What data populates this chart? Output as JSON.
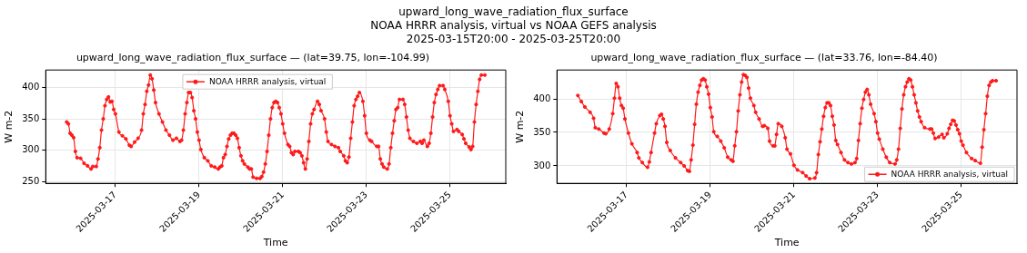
{
  "chart_data": [
    {
      "type": "other",
      "title": "upward_long_wave_radiation_flux_surface",
      "subtitle": "NOAA HRRR analysis, virtual vs NOAA GEFS analysis",
      "annotations": [
        "2025-03-15T20:00 - 2025-03-25T20:00"
      ]
    },
    {
      "type": "line",
      "title": "upward_long_wave_radiation_flux_surface — (lat=39.75, lon=-104.99)",
      "xlabel": "Time",
      "ylabel": "W m-2",
      "xlim": [
        "2025-03-15T08:00",
        "2025-03-26T08:00"
      ],
      "ylim": [
        247,
        428
      ],
      "xticks": [
        "2025-03-17",
        "2025-03-19",
        "2025-03-21",
        "2025-03-23",
        "2025-03-25"
      ],
      "yticks": [
        250,
        300,
        350,
        400
      ],
      "grid": true,
      "legend": "top",
      "marker": "circle",
      "line_style": "solid",
      "series": [
        {
          "name": "NOAA HRRR analysis, virtual",
          "color": "#ff1a1a",
          "x": [
            "2025-03-15T20:00",
            "2025-03-15T21:00",
            "2025-03-15T22:00",
            "2025-03-15T23:00",
            "2025-03-16T00:00",
            "2025-03-16T01:00",
            "2025-03-16T02:00",
            "2025-03-16T04:00",
            "2025-03-16T06:00",
            "2025-03-16T08:00",
            "2025-03-16T10:00",
            "2025-03-16T11:00",
            "2025-03-16T13:00",
            "2025-03-16T14:00",
            "2025-03-16T15:00",
            "2025-03-16T16:00",
            "2025-03-16T17:00",
            "2025-03-16T18:00",
            "2025-03-16T19:00",
            "2025-03-16T20:00",
            "2025-03-16T21:00",
            "2025-03-16T22:00",
            "2025-03-16T23:00",
            "2025-03-17T00:00",
            "2025-03-17T02:00",
            "2025-03-17T04:00",
            "2025-03-17T06:00",
            "2025-03-17T08:00",
            "2025-03-17T09:00",
            "2025-03-17T11:00",
            "2025-03-17T13:00",
            "2025-03-17T15:00",
            "2025-03-17T16:00",
            "2025-03-17T17:00",
            "2025-03-17T18:00",
            "2025-03-17T19:00",
            "2025-03-17T20:00",
            "2025-03-17T21:00",
            "2025-03-17T22:00",
            "2025-03-17T23:00",
            "2025-03-18T01:00",
            "2025-03-18T03:00",
            "2025-03-18T05:00",
            "2025-03-18T07:00",
            "2025-03-18T09:00",
            "2025-03-18T11:00",
            "2025-03-18T13:00",
            "2025-03-18T14:00",
            "2025-03-18T15:00",
            "2025-03-18T16:00",
            "2025-03-18T17:00",
            "2025-03-18T18:00",
            "2025-03-18T19:00",
            "2025-03-18T20:00",
            "2025-03-18T21:00",
            "2025-03-18T22:00",
            "2025-03-18T23:00",
            "2025-03-19T00:00",
            "2025-03-19T01:00",
            "2025-03-19T03:00",
            "2025-03-19T05:00",
            "2025-03-19T07:00",
            "2025-03-19T09:00",
            "2025-03-19T11:00",
            "2025-03-19T12:00",
            "2025-03-19T13:00",
            "2025-03-19T14:00",
            "2025-03-19T15:00",
            "2025-03-19T16:00",
            "2025-03-19T17:00",
            "2025-03-19T18:00",
            "2025-03-19T19:00",
            "2025-03-19T20:00",
            "2025-03-19T21:00",
            "2025-03-19T22:00",
            "2025-03-19T23:00",
            "2025-03-20T00:00",
            "2025-03-20T01:00",
            "2025-03-20T02:00",
            "2025-03-20T04:00",
            "2025-03-20T05:00",
            "2025-03-20T06:00",
            "2025-03-20T07:00",
            "2025-03-20T09:00",
            "2025-03-20T11:00",
            "2025-03-20T12:00",
            "2025-03-20T13:00",
            "2025-03-20T14:00",
            "2025-03-20T15:00",
            "2025-03-20T16:00",
            "2025-03-20T17:00",
            "2025-03-20T18:00",
            "2025-03-20T19:00",
            "2025-03-20T20:00",
            "2025-03-20T21:00",
            "2025-03-20T22:00",
            "2025-03-20T23:00",
            "2025-03-21T00:00",
            "2025-03-21T01:00",
            "2025-03-21T03:00",
            "2025-03-21T04:00",
            "2025-03-21T05:00",
            "2025-03-21T06:00",
            "2025-03-21T07:00",
            "2025-03-21T09:00",
            "2025-03-21T10:00",
            "2025-03-21T11:00",
            "2025-03-21T12:00",
            "2025-03-21T13:00",
            "2025-03-21T14:00",
            "2025-03-21T15:00",
            "2025-03-21T16:00",
            "2025-03-21T17:00",
            "2025-03-21T18:00",
            "2025-03-21T20:00",
            "2025-03-21T21:00",
            "2025-03-21T22:00",
            "2025-03-22T00:00",
            "2025-03-22T01:00",
            "2025-03-22T02:00",
            "2025-03-22T04:00",
            "2025-03-22T06:00",
            "2025-03-22T08:00",
            "2025-03-22T09:00",
            "2025-03-22T11:00",
            "2025-03-22T12:00",
            "2025-03-22T13:00",
            "2025-03-22T14:00",
            "2025-03-22T15:00",
            "2025-03-22T16:00",
            "2025-03-22T17:00",
            "2025-03-22T18:00",
            "2025-03-22T19:00",
            "2025-03-22T20:00",
            "2025-03-22T22:00",
            "2025-03-22T23:00",
            "2025-03-23T00:00",
            "2025-03-23T02:00",
            "2025-03-23T03:00",
            "2025-03-23T06:00",
            "2025-03-23T07:00",
            "2025-03-23T08:00",
            "2025-03-23T09:00",
            "2025-03-23T10:00",
            "2025-03-23T12:00",
            "2025-03-23T13:00",
            "2025-03-23T14:00",
            "2025-03-23T15:00",
            "2025-03-23T16:00",
            "2025-03-23T17:00",
            "2025-03-23T18:00",
            "2025-03-23T19:00",
            "2025-03-23T21:00",
            "2025-03-23T22:00",
            "2025-03-23T23:00",
            "2025-03-24T00:00",
            "2025-03-24T01:00",
            "2025-03-24T03:00",
            "2025-03-24T05:00",
            "2025-03-24T07:00",
            "2025-03-24T08:00",
            "2025-03-24T09:00",
            "2025-03-24T11:00",
            "2025-03-24T12:00",
            "2025-03-24T13:00",
            "2025-03-24T14:00",
            "2025-03-24T15:00",
            "2025-03-24T16:00",
            "2025-03-24T17:00",
            "2025-03-24T18:00",
            "2025-03-24T20:00",
            "2025-03-24T21:00",
            "2025-03-24T23:00",
            "2025-03-25T00:00",
            "2025-03-25T01:00",
            "2025-03-25T02:00",
            "2025-03-25T04:00",
            "2025-03-25T05:00",
            "2025-03-25T07:00",
            "2025-03-25T08:00",
            "2025-03-25T09:00",
            "2025-03-25T11:00",
            "2025-03-25T12:00",
            "2025-03-25T13:00",
            "2025-03-25T14:00",
            "2025-03-25T15:00",
            "2025-03-25T16:00",
            "2025-03-25T17:00",
            "2025-03-25T18:00",
            "2025-03-25T20:00"
          ],
          "values": [
            345,
            342,
            327,
            324,
            320,
            298,
            288,
            287,
            279,
            275,
            270,
            274,
            274,
            286,
            304,
            332,
            350,
            371,
            381,
            385,
            377,
            378,
            365,
            358,
            329,
            323,
            318,
            308,
            306,
            313,
            319,
            332,
            358,
            373,
            394,
            404,
            420,
            414,
            396,
            376,
            358,
            345,
            332,
            324,
            316,
            319,
            314,
            316,
            332,
            358,
            376,
            392,
            392,
            384,
            363,
            350,
            329,
            316,
            301,
            288,
            283,
            275,
            273,
            270,
            273,
            275,
            288,
            293,
            306,
            318,
            324,
            327,
            327,
            324,
            319,
            304,
            291,
            283,
            278,
            273,
            270,
            270,
            257,
            255,
            255,
            258,
            265,
            278,
            298,
            324,
            350,
            368,
            376,
            378,
            376,
            368,
            358,
            342,
            327,
            309,
            306,
            296,
            293,
            298,
            298,
            296,
            291,
            280,
            270,
            286,
            314,
            342,
            358,
            365,
            378,
            373,
            363,
            350,
            329,
            314,
            309,
            306,
            304,
            298,
            291,
            283,
            280,
            289,
            319,
            345,
            371,
            381,
            386,
            392,
            378,
            355,
            327,
            316,
            314,
            306,
            306,
            286,
            278,
            273,
            270,
            278,
            304,
            327,
            347,
            365,
            368,
            381,
            381,
            373,
            353,
            332,
            319,
            314,
            311,
            314,
            311,
            316,
            306,
            311,
            327,
            353,
            376,
            389,
            397,
            403,
            403,
            397,
            378,
            355,
            342,
            330,
            333,
            330,
            325,
            318,
            311,
            305,
            301,
            306,
            345,
            373,
            394,
            413,
            420,
            420
          ]
        }
      ]
    },
    {
      "type": "line",
      "title": "upward_long_wave_radiation_flux_surface — (lat=33.76, lon=-84.40)",
      "xlabel": "Time",
      "ylabel": "W m-2",
      "xlim": [
        "2025-03-15T08:00",
        "2025-03-26T08:00"
      ],
      "ylim": [
        274,
        443
      ],
      "xticks": [
        "2025-03-17",
        "2025-03-19",
        "2025-03-21",
        "2025-03-23",
        "2025-03-25"
      ],
      "yticks": [
        300,
        350,
        400
      ],
      "grid": true,
      "legend": "bottom right",
      "marker": "circle",
      "line_style": "solid",
      "series": [
        {
          "name": "NOAA HRRR analysis, virtual",
          "color": "#ff1a1a",
          "x": [
            "2025-03-15T20:00",
            "2025-03-15T22:00",
            "2025-03-16T00:00",
            "2025-03-16T03:00",
            "2025-03-16T05:00",
            "2025-03-16T06:00",
            "2025-03-16T08:00",
            "2025-03-16T11:00",
            "2025-03-16T12:00",
            "2025-03-16T14:00",
            "2025-03-16T16:00",
            "2025-03-16T17:00",
            "2025-03-16T18:00",
            "2025-03-16T19:00",
            "2025-03-16T20:00",
            "2025-03-16T21:00",
            "2025-03-16T22:00",
            "2025-03-16T23:00",
            "2025-03-17T01:00",
            "2025-03-17T03:00",
            "2025-03-17T06:00",
            "2025-03-17T07:00",
            "2025-03-17T09:00",
            "2025-03-17T12:00",
            "2025-03-17T13:00",
            "2025-03-17T14:00",
            "2025-03-17T16:00",
            "2025-03-17T17:00",
            "2025-03-17T19:00",
            "2025-03-17T20:00",
            "2025-03-17T21:00",
            "2025-03-17T22:00",
            "2025-03-17T23:00",
            "2025-03-18T01:00",
            "2025-03-18T04:00",
            "2025-03-18T07:00",
            "2025-03-18T09:00",
            "2025-03-18T11:00",
            "2025-03-18T12:00",
            "2025-03-18T13:00",
            "2025-03-18T14:00",
            "2025-03-18T15:00",
            "2025-03-18T16:00",
            "2025-03-18T17:00",
            "2025-03-18T18:00",
            "2025-03-18T19:00",
            "2025-03-18T20:00",
            "2025-03-18T21:00",
            "2025-03-18T22:00",
            "2025-03-18T23:00",
            "2025-03-19T00:00",
            "2025-03-19T01:00",
            "2025-03-19T02:00",
            "2025-03-19T04:00",
            "2025-03-19T06:00",
            "2025-03-19T08:00",
            "2025-03-19T10:00",
            "2025-03-19T12:00",
            "2025-03-19T13:00",
            "2025-03-19T14:00",
            "2025-03-19T15:00",
            "2025-03-19T16:00",
            "2025-03-19T17:00",
            "2025-03-19T18:00",
            "2025-03-19T19:00",
            "2025-03-19T20:00",
            "2025-03-19T21:00",
            "2025-03-19T22:00",
            "2025-03-19T23:00",
            "2025-03-20T01:00",
            "2025-03-20T02:00",
            "2025-03-20T04:00",
            "2025-03-20T06:00",
            "2025-03-20T07:00",
            "2025-03-20T09:00",
            "2025-03-20T10:00",
            "2025-03-20T12:00",
            "2025-03-20T13:00",
            "2025-03-20T14:00",
            "2025-03-20T15:00",
            "2025-03-20T17:00",
            "2025-03-20T19:00",
            "2025-03-20T20:00",
            "2025-03-20T22:00",
            "2025-03-21T00:00",
            "2025-03-21T02:00",
            "2025-03-21T05:00",
            "2025-03-21T07:00",
            "2025-03-21T09:00",
            "2025-03-21T12:00",
            "2025-03-21T13:00",
            "2025-03-21T14:00",
            "2025-03-21T15:00",
            "2025-03-21T16:00",
            "2025-03-21T17:00",
            "2025-03-21T18:00",
            "2025-03-21T19:00",
            "2025-03-21T20:00",
            "2025-03-21T21:00",
            "2025-03-21T22:00",
            "2025-03-21T23:00",
            "2025-03-22T00:00",
            "2025-03-22T01:00",
            "2025-03-22T03:00",
            "2025-03-22T05:00",
            "2025-03-22T07:00",
            "2025-03-22T09:00",
            "2025-03-22T11:00",
            "2025-03-22T12:00",
            "2025-03-22T13:00",
            "2025-03-22T14:00",
            "2025-03-22T15:00",
            "2025-03-22T16:00",
            "2025-03-22T17:00",
            "2025-03-22T18:00",
            "2025-03-22T19:00",
            "2025-03-22T20:00",
            "2025-03-22T22:00",
            "2025-03-22T23:00",
            "2025-03-23T00:00",
            "2025-03-23T01:00",
            "2025-03-23T03:00",
            "2025-03-23T05:00",
            "2025-03-23T07:00",
            "2025-03-23T10:00",
            "2025-03-23T11:00",
            "2025-03-23T12:00",
            "2025-03-23T13:00",
            "2025-03-23T14:00",
            "2025-03-23T15:00",
            "2025-03-23T16:00",
            "2025-03-23T17:00",
            "2025-03-23T18:00",
            "2025-03-23T19:00",
            "2025-03-23T20:00",
            "2025-03-23T21:00",
            "2025-03-23T22:00",
            "2025-03-23T23:00",
            "2025-03-24T00:00",
            "2025-03-24T01:00",
            "2025-03-24T03:00",
            "2025-03-24T06:00",
            "2025-03-24T07:00",
            "2025-03-24T08:00",
            "2025-03-24T09:00",
            "2025-03-24T11:00",
            "2025-03-24T13:00",
            "2025-03-24T14:00",
            "2025-03-24T16:00",
            "2025-03-24T17:00",
            "2025-03-24T18:00",
            "2025-03-24T19:00",
            "2025-03-24T20:00",
            "2025-03-24T21:00",
            "2025-03-24T22:00",
            "2025-03-24T23:00",
            "2025-03-25T00:00",
            "2025-03-25T01:00",
            "2025-03-25T03:00",
            "2025-03-25T06:00",
            "2025-03-25T08:00",
            "2025-03-25T11:00",
            "2025-03-25T12:00",
            "2025-03-25T13:00",
            "2025-03-25T14:00",
            "2025-03-25T15:00",
            "2025-03-25T16:00",
            "2025-03-25T17:00",
            "2025-03-25T18:00",
            "2025-03-25T20:00"
          ],
          "values": [
            405,
            396,
            388,
            380,
            371,
            357,
            355,
            349,
            348,
            355,
            378,
            401,
            423,
            418,
            401,
            390,
            386,
            370,
            349,
            333,
            320,
            312,
            305,
            298,
            306,
            320,
            349,
            363,
            375,
            377,
            370,
            359,
            335,
            323,
            312,
            305,
            300,
            293,
            292,
            309,
            331,
            362,
            392,
            410,
            420,
            428,
            430,
            428,
            418,
            407,
            387,
            373,
            351,
            344,
            337,
            327,
            313,
            309,
            307,
            330,
            351,
            382,
            406,
            425,
            436,
            435,
            432,
            416,
            401,
            390,
            380,
            370,
            359,
            360,
            356,
            337,
            330,
            330,
            347,
            363,
            359,
            342,
            325,
            318,
            301,
            294,
            290,
            285,
            281,
            282,
            290,
            317,
            336,
            355,
            374,
            387,
            394,
            394,
            390,
            374,
            361,
            338,
            332,
            320,
            309,
            305,
            303,
            305,
            311,
            338,
            363,
            386,
            399,
            410,
            414,
            406,
            392,
            378,
            366,
            349,
            340,
            325,
            313,
            305,
            303,
            309,
            325,
            356,
            385,
            406,
            418,
            425,
            430,
            428,
            418,
            406,
            394,
            382,
            373,
            366,
            357,
            355,
            355,
            349,
            341,
            343,
            347,
            342,
            348,
            356,
            362,
            368,
            367,
            361,
            354,
            348,
            337,
            331,
            320,
            311,
            308,
            304,
            328,
            354,
            378,
            404,
            420,
            425,
            427,
            427
          ]
        }
      ]
    }
  ]
}
